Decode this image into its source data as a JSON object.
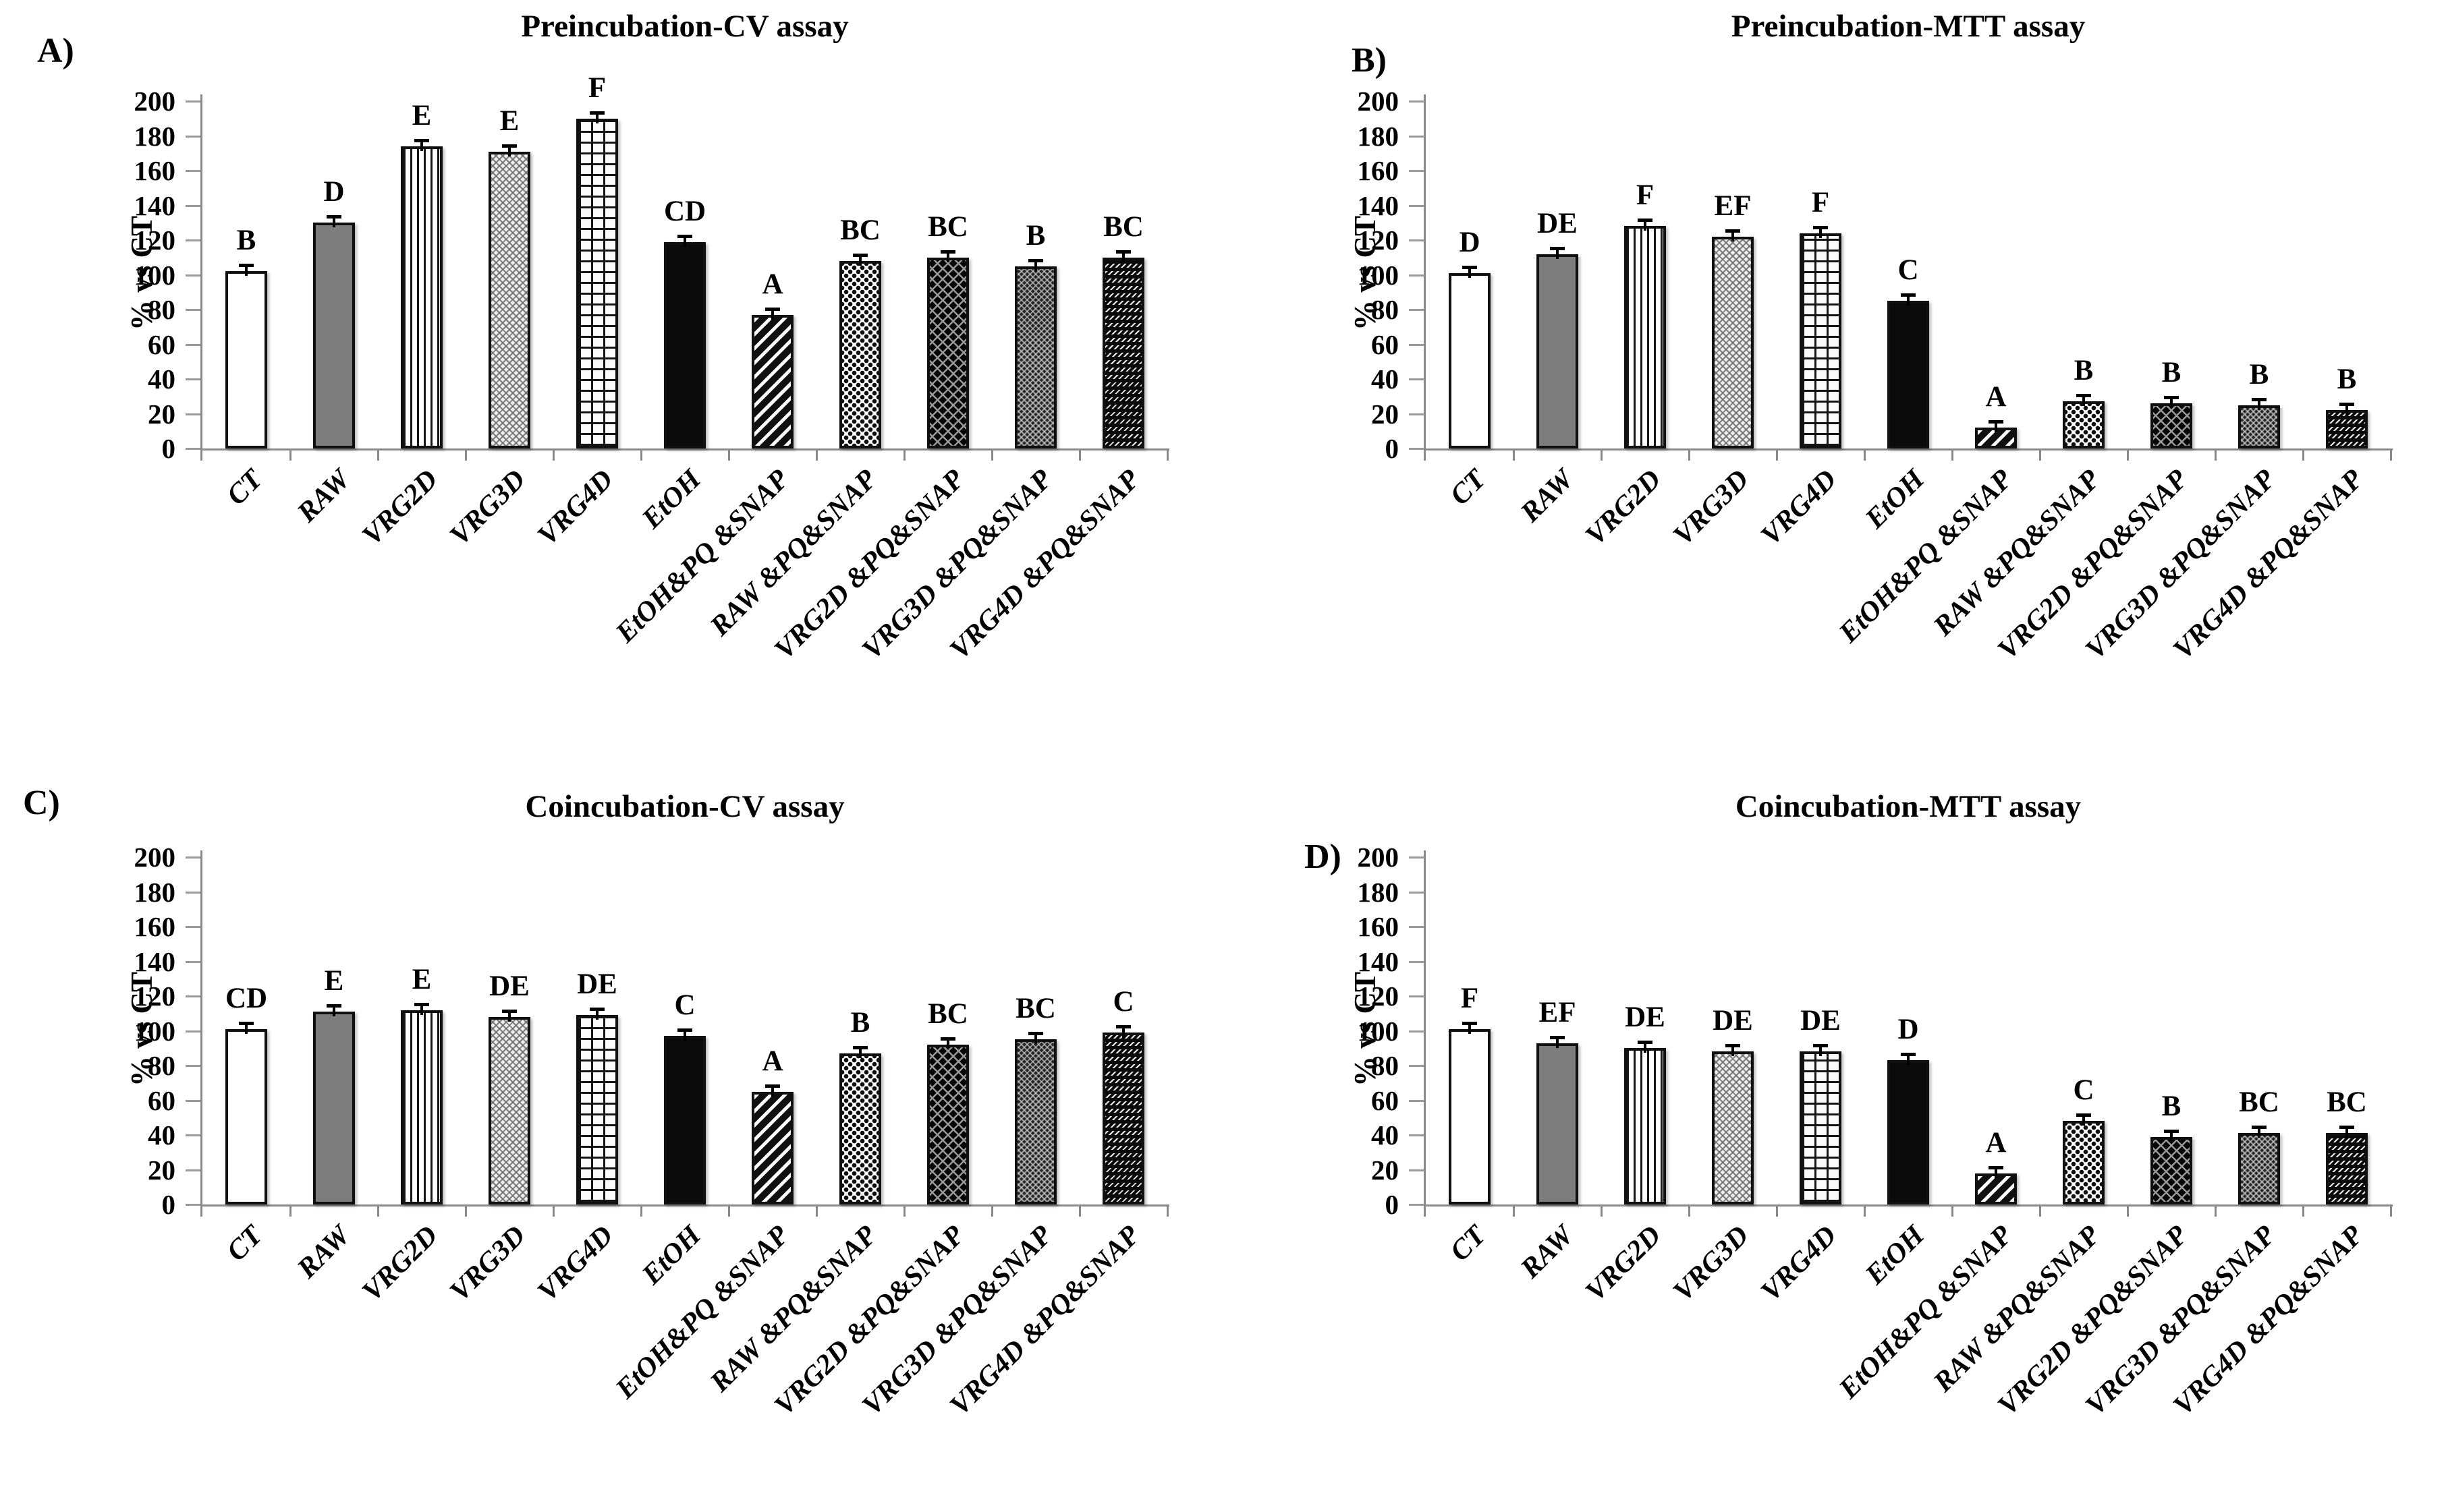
{
  "figure": {
    "y_axis_label": "% vs CT",
    "y_ticks": [
      0,
      20,
      40,
      60,
      80,
      100,
      120,
      140,
      160,
      180,
      200
    ],
    "categories": [
      "CT",
      "RAW",
      "VRG2D",
      "VRG3D",
      "VRG4D",
      "EtOH",
      "EtOH&PQ &SNAP",
      "RAW &PQ&SNAP",
      "VRG2D &PQ&SNAP",
      "VRG3D &PQ&SNAP",
      "VRG4D &PQ&SNAP"
    ],
    "bar_styles": [
      {
        "category": "CT",
        "pattern": "plain-white"
      },
      {
        "category": "RAW",
        "pattern": "solid-gray"
      },
      {
        "category": "VRG2D",
        "pattern": "vertical-stripes"
      },
      {
        "category": "VRG3D",
        "pattern": "herringbone-light"
      },
      {
        "category": "VRG4D",
        "pattern": "brick"
      },
      {
        "category": "EtOH",
        "pattern": "solid-black"
      },
      {
        "category": "EtOH&PQ &SNAP",
        "pattern": "diagonal-stripes"
      },
      {
        "category": "RAW &PQ&SNAP",
        "pattern": "dotted"
      },
      {
        "category": "VRG2D &PQ&SNAP",
        "pattern": "diamond-lattice-dark"
      },
      {
        "category": "VRG3D &PQ&SNAP",
        "pattern": "herringbone-dark"
      },
      {
        "category": "VRG4D &PQ&SNAP",
        "pattern": "dashed-diagonal-dark"
      }
    ]
  },
  "chart_data": [
    {
      "type": "bar",
      "panel": "A)",
      "title": "Preincubation-CV assay",
      "ylabel": "% vs CT",
      "xlabel": "",
      "ylim": [
        0,
        200
      ],
      "ytick_step": 20,
      "grid": false,
      "legend": "none",
      "error_bars": true,
      "categories": [
        "CT",
        "RAW",
        "VRG2D",
        "VRG3D",
        "VRG4D",
        "EtOH",
        "EtOH&PQ &SNAP",
        "RAW &PQ&SNAP",
        "VRG2D &PQ&SNAP",
        "VRG3D &PQ&SNAP",
        "VRG4D &PQ&SNAP"
      ],
      "values": [
        102,
        130,
        174,
        171,
        190,
        119,
        77,
        108,
        110,
        105,
        110
      ],
      "sig_letters": [
        "B",
        "D",
        "E",
        "E",
        "F",
        "CD",
        "A",
        "BC",
        "BC",
        "B",
        "BC"
      ]
    },
    {
      "type": "bar",
      "panel": "B)",
      "title": "Preincubation-MTT assay",
      "ylabel": "% vs CT",
      "xlabel": "",
      "ylim": [
        0,
        200
      ],
      "ytick_step": 20,
      "grid": false,
      "legend": "none",
      "error_bars": true,
      "categories": [
        "CT",
        "RAW",
        "VRG2D",
        "VRG3D",
        "VRG4D",
        "EtOH",
        "EtOH&PQ &SNAP",
        "RAW &PQ&SNAP",
        "VRG2D &PQ&SNAP",
        "VRG3D &PQ&SNAP",
        "VRG4D &PQ&SNAP"
      ],
      "values": [
        101,
        112,
        128,
        122,
        124,
        85,
        12,
        27,
        26,
        25,
        22
      ],
      "sig_letters": [
        "D",
        "DE",
        "F",
        "EF",
        "F",
        "C",
        "A",
        "B",
        "B",
        "B",
        "B"
      ]
    },
    {
      "type": "bar",
      "panel": "C)",
      "title": "Coincubation-CV assay",
      "ylabel": "% vs CT",
      "xlabel": "",
      "ylim": [
        0,
        200
      ],
      "ytick_step": 20,
      "grid": false,
      "legend": "none",
      "error_bars": true,
      "categories": [
        "CT",
        "RAW",
        "VRG2D",
        "VRG3D",
        "VRG4D",
        "EtOH",
        "EtOH&PQ &SNAP",
        "RAW &PQ&SNAP",
        "VRG2D &PQ&SNAP",
        "VRG3D &PQ&SNAP",
        "VRG4D &PQ&SNAP"
      ],
      "values": [
        101,
        111,
        112,
        108,
        109,
        97,
        65,
        87,
        92,
        95,
        99
      ],
      "sig_letters": [
        "CD",
        "E",
        "E",
        "DE",
        "DE",
        "C",
        "A",
        "B",
        "BC",
        "BC",
        "C"
      ]
    },
    {
      "type": "bar",
      "panel": "D)",
      "title": "Coincubation-MTT assay",
      "ylabel": "% vs CT",
      "xlabel": "",
      "ylim": [
        0,
        200
      ],
      "ytick_step": 20,
      "grid": false,
      "legend": "none",
      "error_bars": true,
      "categories": [
        "CT",
        "RAW",
        "VRG2D",
        "VRG3D",
        "VRG4D",
        "EtOH",
        "EtOH&PQ &SNAP",
        "RAW &PQ&SNAP",
        "VRG2D &PQ&SNAP",
        "VRG3D &PQ&SNAP",
        "VRG4D &PQ&SNAP"
      ],
      "values": [
        101,
        93,
        90,
        88,
        88,
        83,
        18,
        48,
        39,
        41,
        41
      ],
      "sig_letters": [
        "F",
        "EF",
        "DE",
        "DE",
        "DE",
        "D",
        "A",
        "C",
        "B",
        "BC",
        "BC"
      ]
    }
  ]
}
